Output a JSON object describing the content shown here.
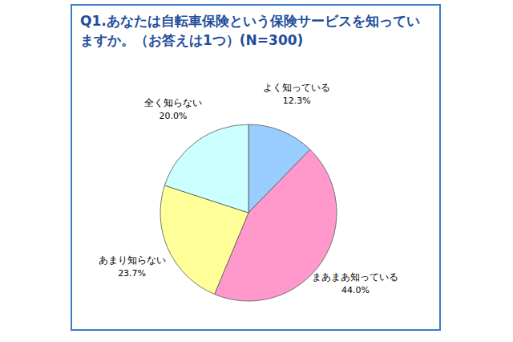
{
  "chart_data": {
    "type": "pie",
    "title": "Q1.あなたは自転車保険という保険サービスを知っていますか。（お答えは1つ）(N=300)",
    "categories": [
      "よく知っている",
      "まあまあ知っている",
      "あまり知らない",
      "全く知らない"
    ],
    "values": [
      12.3,
      44.0,
      23.7,
      20.0
    ],
    "value_labels": [
      "12.3%",
      "44.0%",
      "23.7%",
      "20.0%"
    ],
    "colors": [
      "#99ccff",
      "#ff99cc",
      "#ffff99",
      "#ccffff"
    ],
    "data_labels": true
  }
}
